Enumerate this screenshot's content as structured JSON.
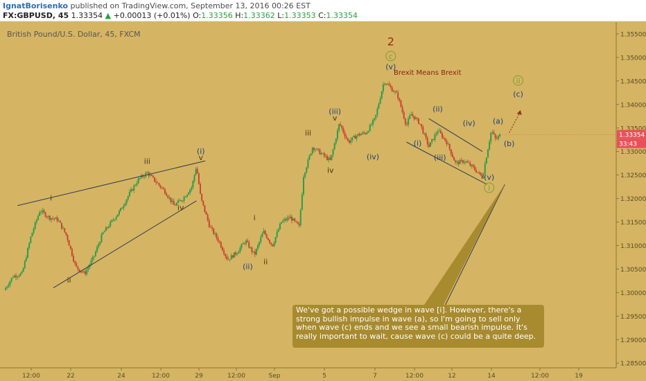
{
  "header": {
    "author": "IgnatBorisenko",
    "published": "published on TradingView.com, September 13, 2016 00:26 EST",
    "symbol": "FX:GBPUSD, 45",
    "last": "1.33354",
    "arrow": "▲",
    "change": "+0.00013 (+0.01%)",
    "o_label": "O:",
    "o_value": "1.33356",
    "h_label": "H:",
    "h_value": "1.33362",
    "l_label": "L:",
    "l_value": "1.33353",
    "c_label": "C:",
    "c_value": "1.33354"
  },
  "colors": {
    "background": "#d5b563",
    "up_candle": "#2f9a4c",
    "down_candle": "#c8452e",
    "wave_label_dark": "#4b3212",
    "wave_label_blue": "#1f3f7a",
    "wave_label_circle": "#7f9f2f",
    "wave_label_red": "#a2281a",
    "price_tag": "#e8515a"
  },
  "chart_data": {
    "type": "candlestick",
    "title": "British Pound/U.S. Dollar, 45, FXCM",
    "x_ticks": [
      "12:00",
      "22",
      "24",
      "12:00",
      "29",
      "12:00",
      "Sep",
      "5",
      "7",
      "12:00",
      "12",
      "14",
      "12:00",
      "19"
    ],
    "y_ticks": [
      "1.35500",
      "1.35000",
      "1.34500",
      "1.34000",
      "1.33500",
      "1.33000",
      "1.32500",
      "1.32000",
      "1.31500",
      "1.31000",
      "1.30500",
      "1.30000",
      "1.29500",
      "1.29000",
      "1.28500"
    ],
    "ylim": [
      1.284,
      1.3575
    ],
    "current_price": "1.33354",
    "countdown": "33:43",
    "price_path": [
      [
        0,
        1.3005
      ],
      [
        2,
        1.3035
      ],
      [
        4,
        1.304
      ],
      [
        6,
        1.312
      ],
      [
        8,
        1.3175
      ],
      [
        10,
        1.316
      ],
      [
        12,
        1.3155
      ],
      [
        14,
        1.312
      ],
      [
        16,
        1.3055
      ],
      [
        18,
        1.304
      ],
      [
        20,
        1.3075
      ],
      [
        22,
        1.3125
      ],
      [
        24,
        1.315
      ],
      [
        26,
        1.3175
      ],
      [
        28,
        1.321
      ],
      [
        30,
        1.324
      ],
      [
        32,
        1.3255
      ],
      [
        34,
        1.3235
      ],
      [
        36,
        1.3215
      ],
      [
        38,
        1.3185
      ],
      [
        40,
        1.32
      ],
      [
        42,
        1.3225
      ],
      [
        43,
        1.327
      ],
      [
        44,
        1.32
      ],
      [
        46,
        1.314
      ],
      [
        48,
        1.311
      ],
      [
        50,
        1.307
      ],
      [
        52,
        1.3085
      ],
      [
        54,
        1.311
      ],
      [
        56,
        1.308
      ],
      [
        58,
        1.313
      ],
      [
        60,
        1.31
      ],
      [
        62,
        1.315
      ],
      [
        64,
        1.316
      ],
      [
        66,
        1.314
      ],
      [
        67,
        1.325
      ],
      [
        69,
        1.331
      ],
      [
        71,
        1.3295
      ],
      [
        73,
        1.328
      ],
      [
        75,
        1.336
      ],
      [
        77,
        1.332
      ],
      [
        79,
        1.3335
      ],
      [
        81,
        1.334
      ],
      [
        83,
        1.337
      ],
      [
        85,
        1.345
      ],
      [
        86,
        1.344
      ],
      [
        88,
        1.342
      ],
      [
        90,
        1.3355
      ],
      [
        91,
        1.338
      ],
      [
        93,
        1.336
      ],
      [
        95,
        1.331
      ],
      [
        97,
        1.3345
      ],
      [
        99,
        1.332
      ],
      [
        101,
        1.3275
      ],
      [
        103,
        1.328
      ],
      [
        105,
        1.3265
      ],
      [
        107,
        1.3245
      ],
      [
        108,
        1.3295
      ],
      [
        109,
        1.3345
      ],
      [
        110,
        1.3325
      ],
      [
        111,
        1.3335
      ]
    ],
    "x_max_index": 136,
    "lines": [
      {
        "from": [
          3,
          1.3185
        ],
        "to": [
          45,
          1.328
        ]
      },
      {
        "from": [
          11,
          1.301
        ],
        "to": [
          43,
          1.3195
        ]
      },
      {
        "from": [
          95,
          1.337
        ],
        "to": [
          107,
          1.33
        ]
      },
      {
        "from": [
          90,
          1.332
        ],
        "to": [
          108,
          1.323
        ]
      },
      {
        "from": [
          112,
          1.323
        ],
        "to": [
          98,
          1.296
        ]
      }
    ],
    "dotted_arrow": {
      "from": [
        113,
        1.334
      ],
      "to": [
        115.5,
        1.3385
      ]
    },
    "wave_labels": [
      {
        "text": "2",
        "x": 86.5,
        "y": 1.3526,
        "style": "red",
        "size": 16
      },
      {
        "text": "c",
        "x": 86.5,
        "y": 1.3497,
        "style": "circle"
      },
      {
        "text": "(v)",
        "x": 86.5,
        "y": 1.3475,
        "style": "blue"
      },
      {
        "text": "ii",
        "x": 115,
        "y": 1.3445,
        "style": "circle"
      },
      {
        "text": "(c)",
        "x": 115,
        "y": 1.3417,
        "style": "blue"
      },
      {
        "text": "i",
        "x": 10.5,
        "y": 1.3196,
        "style": "dark"
      },
      {
        "text": "ii",
        "x": 14.5,
        "y": 1.3021,
        "style": "dark"
      },
      {
        "text": "iii",
        "x": 32,
        "y": 1.3274,
        "style": "dark"
      },
      {
        "text": "(i)",
        "x": 44,
        "y": 1.3295,
        "style": "blue"
      },
      {
        "text": "v",
        "x": 44,
        "y": 1.3282,
        "style": "dark"
      },
      {
        "text": "iv",
        "x": 39.5,
        "y": 1.3175,
        "style": "dark"
      },
      {
        "text": "(ii)",
        "x": 54.5,
        "y": 1.305,
        "style": "blue"
      },
      {
        "text": "i",
        "x": 56,
        "y": 1.3154,
        "style": "dark"
      },
      {
        "text": "ii",
        "x": 58.5,
        "y": 1.306,
        "style": "dark"
      },
      {
        "text": "iii",
        "x": 68,
        "y": 1.3334,
        "style": "dark"
      },
      {
        "text": "iv",
        "x": 73,
        "y": 1.3255,
        "style": "dark"
      },
      {
        "text": "(iii)",
        "x": 74,
        "y": 1.338,
        "style": "blue"
      },
      {
        "text": "v",
        "x": 74,
        "y": 1.3366,
        "style": "dark"
      },
      {
        "text": "(iv)",
        "x": 82.5,
        "y": 1.3283,
        "style": "blue"
      },
      {
        "text": "(ii)",
        "x": 97,
        "y": 1.3385,
        "style": "blue"
      },
      {
        "text": "(i)",
        "x": 92.5,
        "y": 1.3312,
        "style": "blue"
      },
      {
        "text": "(iii)",
        "x": 97.5,
        "y": 1.3282,
        "style": "blue"
      },
      {
        "text": "(iv)",
        "x": 104,
        "y": 1.3355,
        "style": "blue"
      },
      {
        "text": "(a)",
        "x": 110.5,
        "y": 1.3359,
        "style": "blue"
      },
      {
        "text": "(b)",
        "x": 113,
        "y": 1.3311,
        "style": "blue"
      },
      {
        "text": "(v)",
        "x": 108.5,
        "y": 1.324,
        "style": "blue"
      },
      {
        "text": "i",
        "x": 108.5,
        "y": 1.3217,
        "style": "circle"
      }
    ]
  },
  "annotations": {
    "brexit": "Brexit Means Brexit",
    "note": "We've got a possible wedge in wave [i]. However, there's a strong bullish impulse in wave (a), so I'm going to sell only when wave (c) ends and we see a small bearish impulse. It's really important to wait, cause wave (c) could be a quite deep."
  }
}
